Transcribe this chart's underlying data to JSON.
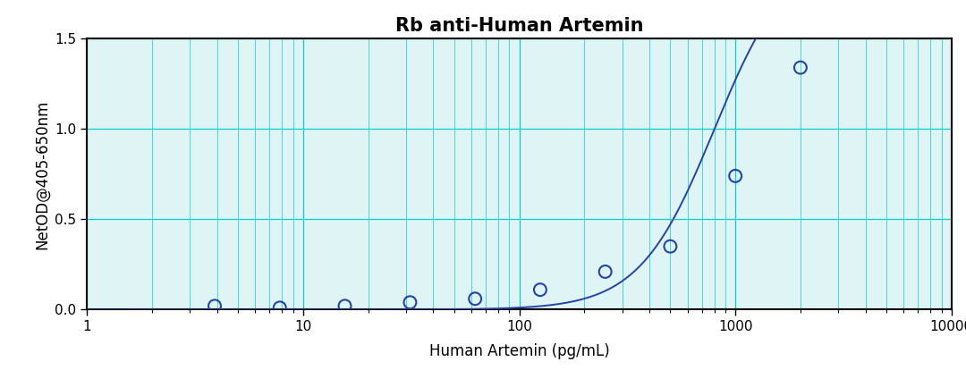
{
  "title": "Rb anti-Human Artemin",
  "xlabel": "Human Artemin (pg/mL)",
  "ylabel": "NetOD@405-650nm",
  "xlim": [
    1,
    10000
  ],
  "ylim": [
    0.0,
    1.5
  ],
  "yticks": [
    0.0,
    0.5,
    1.0,
    1.5
  ],
  "data_points_x": [
    3.9,
    7.8,
    15.6,
    31.25,
    62.5,
    125,
    250,
    500,
    1000,
    2000
  ],
  "data_points_y": [
    0.02,
    0.01,
    0.02,
    0.04,
    0.06,
    0.11,
    0.21,
    0.35,
    0.74,
    1.34
  ],
  "curve_color": "#2244aa",
  "marker_color": "#2244aa",
  "grid_major_color": "#00d0d0",
  "grid_minor_color": "#00d0d0",
  "background_color": "#dff4f4",
  "fig_background": "#ffffff",
  "title_fontsize": 15,
  "axis_label_fontsize": 12,
  "tick_fontsize": 11,
  "curve_linewidth": 1.4,
  "marker_size": 100,
  "marker_linewidth": 1.5
}
